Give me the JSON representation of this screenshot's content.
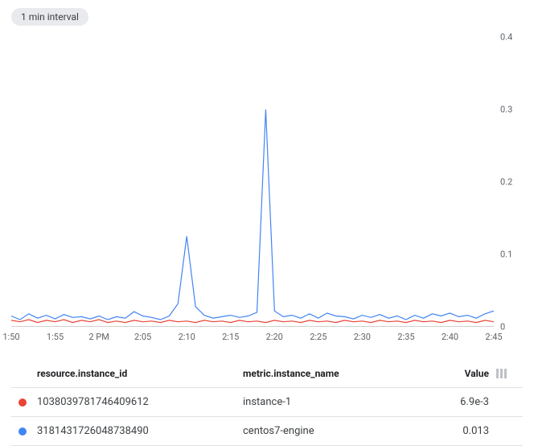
{
  "interval_badge": "1 min interval",
  "chart": {
    "type": "line",
    "background_color": "#ffffff",
    "grid_color": "#e0e0e0",
    "axis_color": "#d0d0d0",
    "tick_fontsize": 11,
    "tick_color": "#5f6368",
    "ylim": [
      0,
      0.4
    ],
    "y_ticks": [
      0,
      0.1,
      0.2,
      0.3,
      0.4
    ],
    "y_tick_labels": [
      "0",
      "0.1",
      "0.2",
      "0.3",
      "0.4"
    ],
    "x_labels": [
      "1:50",
      "1:55",
      "2 PM",
      "2:05",
      "2:10",
      "2:15",
      "2:20",
      "2:25",
      "2:30",
      "2:35",
      "2:40",
      "2:45"
    ],
    "series": [
      {
        "name": "centos7-engine",
        "color": "#4285f4",
        "line_width": 1.2,
        "marker": "none",
        "y": [
          0.015,
          0.01,
          0.018,
          0.012,
          0.016,
          0.011,
          0.017,
          0.013,
          0.014,
          0.011,
          0.015,
          0.01,
          0.014,
          0.012,
          0.021,
          0.015,
          0.013,
          0.01,
          0.015,
          0.032,
          0.125,
          0.028,
          0.016,
          0.012,
          0.014,
          0.016,
          0.013,
          0.015,
          0.02,
          0.3,
          0.022,
          0.014,
          0.016,
          0.012,
          0.018,
          0.012,
          0.019,
          0.015,
          0.014,
          0.011,
          0.016,
          0.013,
          0.017,
          0.012,
          0.015,
          0.01,
          0.016,
          0.012,
          0.018,
          0.015,
          0.019,
          0.014,
          0.016,
          0.012,
          0.018,
          0.022
        ]
      },
      {
        "name": "instance-1",
        "color": "#ea4335",
        "line_width": 1.2,
        "marker": "none",
        "y": [
          0.009,
          0.007,
          0.01,
          0.006,
          0.009,
          0.007,
          0.01,
          0.006,
          0.009,
          0.007,
          0.01,
          0.006,
          0.008,
          0.006,
          0.009,
          0.007,
          0.008,
          0.006,
          0.009,
          0.007,
          0.008,
          0.006,
          0.009,
          0.007,
          0.008,
          0.006,
          0.009,
          0.007,
          0.008,
          0.006,
          0.009,
          0.007,
          0.008,
          0.006,
          0.009,
          0.007,
          0.008,
          0.006,
          0.009,
          0.007,
          0.008,
          0.006,
          0.009,
          0.007,
          0.008,
          0.006,
          0.009,
          0.007,
          0.008,
          0.006,
          0.009,
          0.007,
          0.008,
          0.006,
          0.009,
          0.007
        ]
      }
    ]
  },
  "table": {
    "columns": {
      "id": "resource.instance_id",
      "name": "metric.instance_name",
      "value": "Value"
    },
    "rows": [
      {
        "dot_color": "#ea4335",
        "id": "1038039781746409612",
        "name": "instance-1",
        "value": "6.9e-3"
      },
      {
        "dot_color": "#4285f4",
        "id": "3181431726048738490",
        "name": "centos7-engine",
        "value": "0.013"
      }
    ]
  }
}
